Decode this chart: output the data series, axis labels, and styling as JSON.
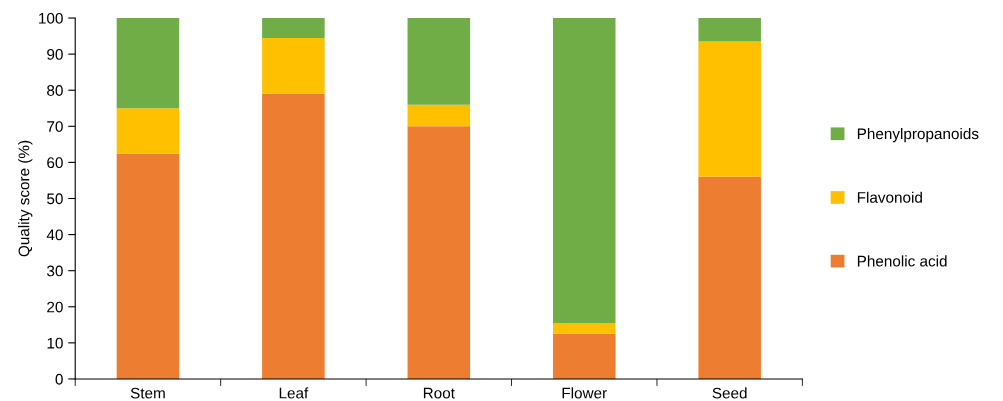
{
  "chart_data": {
    "type": "bar",
    "stacked": true,
    "ylabel": "Quality score (%)",
    "categories": [
      "Stem",
      "Leaf",
      "Root",
      "Flower",
      "Seed"
    ],
    "series": [
      {
        "name": "Phenolic acid",
        "color": "#ed7d31",
        "values": [
          62.5,
          79,
          70,
          12.5,
          56
        ]
      },
      {
        "name": "Flavonoid",
        "color": "#ffc000",
        "values": [
          12.5,
          15.5,
          6,
          3,
          37.5
        ]
      },
      {
        "name": "Phenylpropanoids",
        "color": "#70ad47",
        "values": [
          25,
          5.5,
          24,
          84.5,
          6.5
        ]
      }
    ],
    "ylim": [
      0,
      100
    ],
    "yticks": [
      0,
      10,
      20,
      30,
      40,
      50,
      60,
      70,
      80,
      90,
      100
    ],
    "grid": false,
    "legend": "right"
  }
}
